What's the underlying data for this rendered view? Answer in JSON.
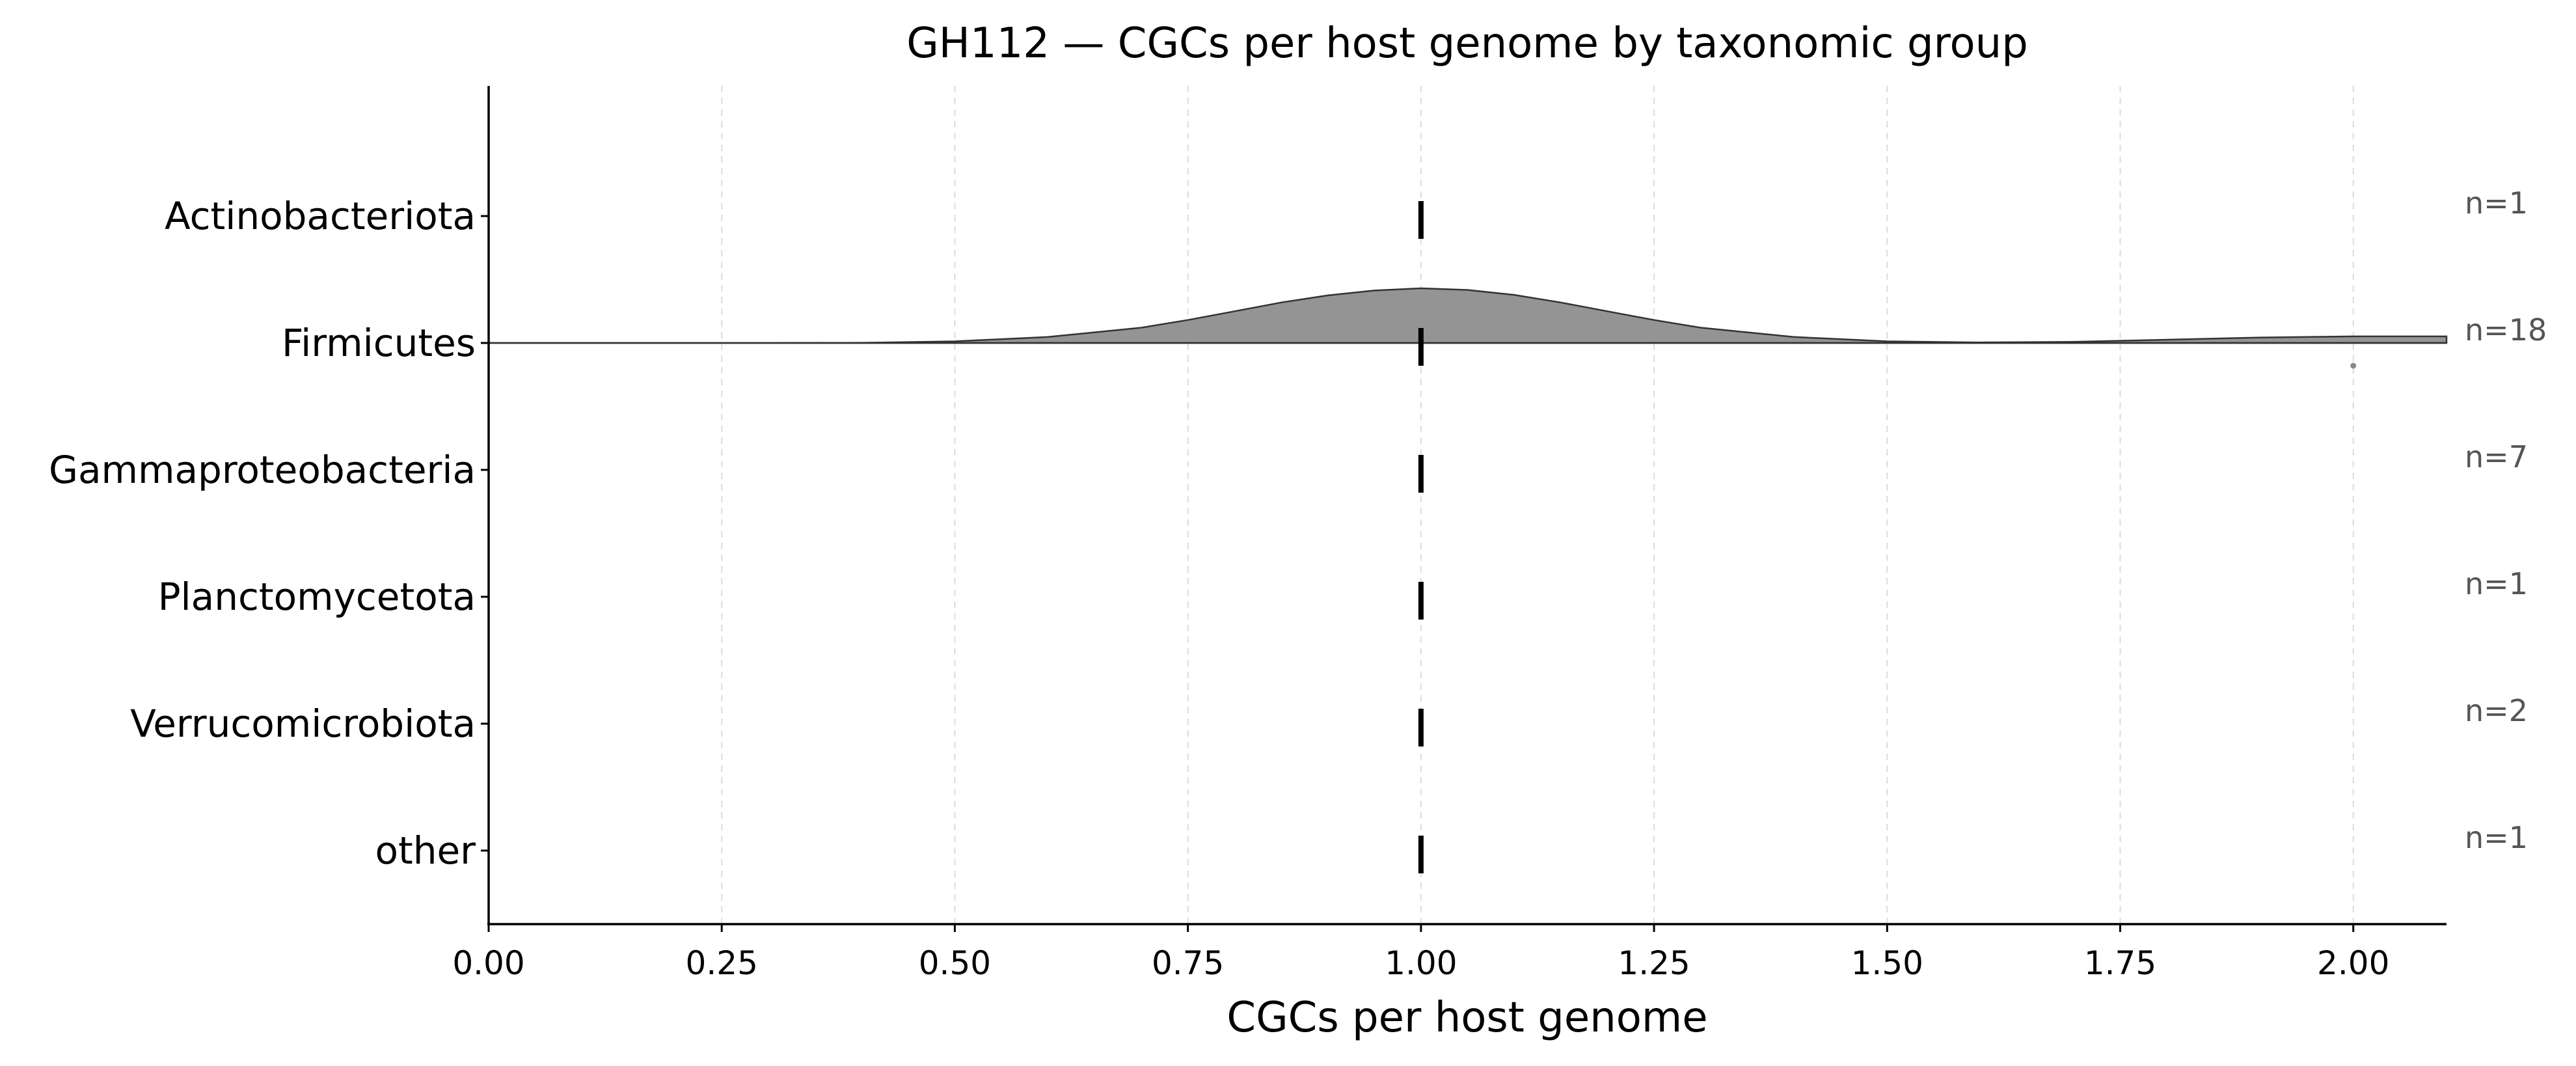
{
  "chart_data": {
    "type": "ridgeline",
    "title": "GH112 — CGCs per host genome by taxonomic group",
    "xlabel": "CGCs per host genome",
    "ylabel": "",
    "xlim": [
      0.0,
      2.1
    ],
    "xticks": [
      0.0,
      0.25,
      0.5,
      0.75,
      1.0,
      1.25,
      1.5,
      1.75,
      2.0
    ],
    "xtick_labels": [
      "0.00",
      "0.25",
      "0.50",
      "0.75",
      "1.00",
      "1.25",
      "1.50",
      "1.75",
      "2.00"
    ],
    "grid": "vertical dashed",
    "categories": [
      "Actinobacteriota",
      "Firmicutes",
      "Gammaproteobacteria",
      "Planctomycetota",
      "Verrucomicrobiota",
      "other"
    ],
    "counts": [
      "n=1",
      "n=18",
      "n=7",
      "n=1",
      "n=2",
      "n=1"
    ],
    "medians": [
      1.0,
      1.0,
      1.0,
      1.0,
      1.0,
      1.0
    ],
    "density_fill_color": "#949494",
    "outlier_color": "#888888",
    "densities": [
      {
        "category": "Firmicutes",
        "x": [
          0.0,
          0.1,
          0.2,
          0.3,
          0.4,
          0.5,
          0.6,
          0.7,
          0.75,
          0.8,
          0.85,
          0.9,
          0.95,
          1.0,
          1.05,
          1.1,
          1.15,
          1.2,
          1.25,
          1.3,
          1.4,
          1.5,
          1.6,
          1.7,
          1.8,
          1.9,
          2.0,
          2.1
        ],
        "y": [
          0.0,
          0.0,
          0.0,
          0.0,
          0.004,
          0.03,
          0.11,
          0.28,
          0.42,
          0.58,
          0.74,
          0.87,
          0.96,
          1.0,
          0.97,
          0.88,
          0.74,
          0.58,
          0.42,
          0.28,
          0.11,
          0.03,
          0.01,
          0.02,
          0.06,
          0.1,
          0.12,
          0.12
        ]
      }
    ],
    "outliers": [
      {
        "category": "Firmicutes",
        "x": 2.0
      }
    ]
  }
}
